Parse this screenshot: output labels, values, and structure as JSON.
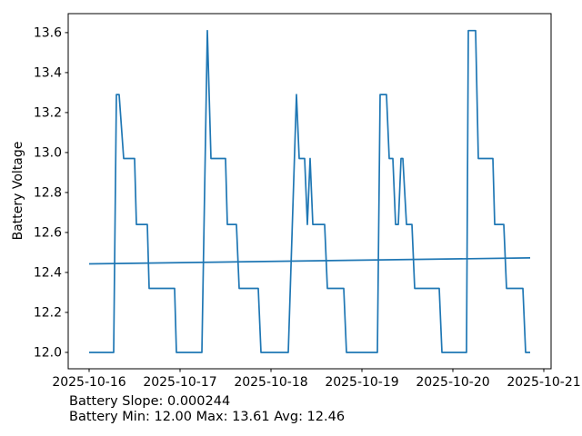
{
  "figure": {
    "background": "#ffffff",
    "accent_color": "#1f77b4"
  },
  "chart_data": {
    "type": "line",
    "title": "",
    "xlabel": "",
    "ylabel": "Battery Voltage",
    "ylabel_color": "#1f77b4",
    "tick_color": "#000000",
    "grid": false,
    "legend": "none",
    "x_unit": "days since 2025-10-16",
    "xlim": [
      -0.23,
      5.08
    ],
    "ylim": [
      11.918,
      13.695
    ],
    "x_ticks": [
      {
        "t": 0,
        "label": "2025-10-16"
      },
      {
        "t": 1,
        "label": "2025-10-17"
      },
      {
        "t": 2,
        "label": "2025-10-18"
      },
      {
        "t": 3,
        "label": "2025-10-19"
      },
      {
        "t": 4,
        "label": "2025-10-20"
      },
      {
        "t": 5,
        "label": "2025-10-21"
      }
    ],
    "y_ticks": [
      12.0,
      12.2,
      12.4,
      12.6,
      12.8,
      13.0,
      13.2,
      13.4,
      13.6
    ],
    "series": [
      {
        "id": "battery-voltage-line",
        "name": "Battery Voltage",
        "color": "#1f77b4",
        "points": [
          [
            0.0,
            12.0
          ],
          [
            0.27,
            12.0
          ],
          [
            0.3,
            13.29
          ],
          [
            0.33,
            13.29
          ],
          [
            0.38,
            12.97
          ],
          [
            0.5,
            12.97
          ],
          [
            0.52,
            12.64
          ],
          [
            0.64,
            12.64
          ],
          [
            0.66,
            12.32
          ],
          [
            0.94,
            12.32
          ],
          [
            0.96,
            12.0
          ],
          [
            1.24,
            12.0
          ],
          [
            1.3,
            13.61
          ],
          [
            1.34,
            12.97
          ],
          [
            1.5,
            12.97
          ],
          [
            1.52,
            12.64
          ],
          [
            1.62,
            12.64
          ],
          [
            1.65,
            12.32
          ],
          [
            1.86,
            12.32
          ],
          [
            1.89,
            12.0
          ],
          [
            2.19,
            12.0
          ],
          [
            2.28,
            13.29
          ],
          [
            2.31,
            12.97
          ],
          [
            2.37,
            12.97
          ],
          [
            2.4,
            12.64
          ],
          [
            2.43,
            12.97
          ],
          [
            2.46,
            12.64
          ],
          [
            2.59,
            12.64
          ],
          [
            2.62,
            12.32
          ],
          [
            2.8,
            12.32
          ],
          [
            2.83,
            12.0
          ],
          [
            3.17,
            12.0
          ],
          [
            3.2,
            13.29
          ],
          [
            3.27,
            13.29
          ],
          [
            3.3,
            12.97
          ],
          [
            3.34,
            12.97
          ],
          [
            3.37,
            12.64
          ],
          [
            3.4,
            12.64
          ],
          [
            3.43,
            12.97
          ],
          [
            3.45,
            12.97
          ],
          [
            3.49,
            12.64
          ],
          [
            3.55,
            12.64
          ],
          [
            3.58,
            12.32
          ],
          [
            3.85,
            12.32
          ],
          [
            3.88,
            12.0
          ],
          [
            4.15,
            12.0
          ],
          [
            4.17,
            13.61
          ],
          [
            4.25,
            13.61
          ],
          [
            4.28,
            12.97
          ],
          [
            4.44,
            12.97
          ],
          [
            4.46,
            12.64
          ],
          [
            4.56,
            12.64
          ],
          [
            4.59,
            12.32
          ],
          [
            4.77,
            12.32
          ],
          [
            4.8,
            12.0
          ],
          [
            4.85,
            12.0
          ]
        ]
      },
      {
        "id": "trend-line",
        "name": "Battery Voltage Trend",
        "color": "#1f77b4",
        "points": [
          [
            0.0,
            12.443
          ],
          [
            4.85,
            12.473
          ]
        ]
      }
    ],
    "footer": [
      "Battery Slope: 0.000244",
      "Battery Min: 12.00 Max: 13.61 Avg: 12.46"
    ],
    "stats": {
      "slope": "0.000244",
      "min": "12.00",
      "max": "13.61",
      "avg": "12.46"
    }
  }
}
